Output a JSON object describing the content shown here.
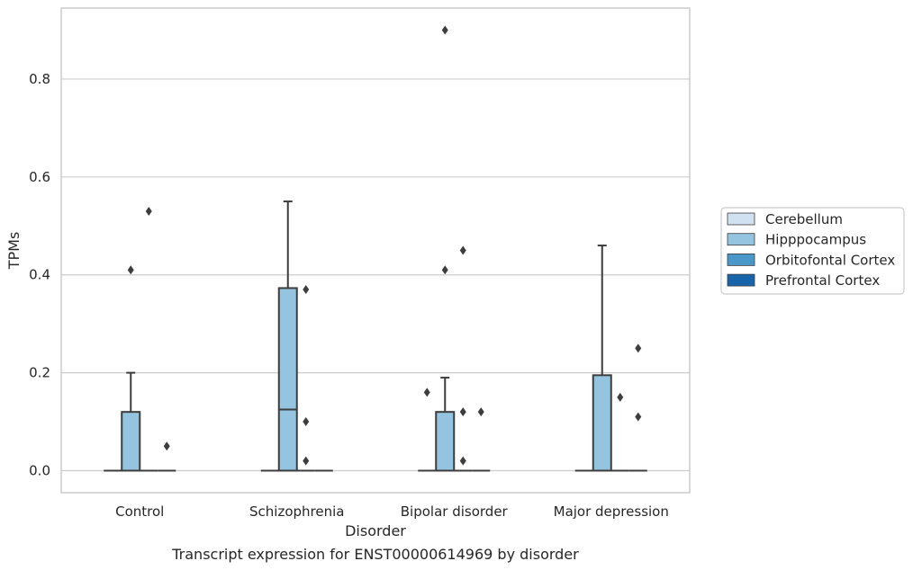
{
  "chart_data": {
    "type": "box",
    "caption": "Transcript expression for ENST00000614969 by disorder",
    "xlabel": "Disorder",
    "ylabel": "TPMs",
    "ylim": [
      -0.045,
      0.945
    ],
    "yticks": [
      0.0,
      0.2,
      0.4,
      0.6,
      0.8
    ],
    "ytick_labels": [
      "0.0",
      "0.2",
      "0.4",
      "0.6",
      "0.8"
    ],
    "grid": "horizontal",
    "legend_position": "right-center",
    "categories": [
      "Control",
      "Schizophrenia",
      "Bipolar disorder",
      "Major depression"
    ],
    "series": [
      {
        "name": "Cerebellum",
        "color": "#d0e1f2",
        "boxes": [
          {
            "q1": 0,
            "median": 0,
            "q3": 0,
            "whisker_low": 0,
            "whisker_high": 0,
            "outliers": []
          },
          {
            "q1": 0,
            "median": 0,
            "q3": 0,
            "whisker_low": 0,
            "whisker_high": 0,
            "outliers": []
          },
          {
            "q1": 0,
            "median": 0,
            "q3": 0,
            "whisker_low": 0,
            "whisker_high": 0,
            "outliers": [
              0.16
            ]
          },
          {
            "q1": 0,
            "median": 0,
            "q3": 0,
            "whisker_low": 0,
            "whisker_high": 0,
            "outliers": []
          }
        ]
      },
      {
        "name": "Hipppocampus",
        "color": "#94c4df",
        "boxes": [
          {
            "q1": 0,
            "median": 0,
            "q3": 0.12,
            "whisker_low": 0,
            "whisker_high": 0.2,
            "outliers": [
              0.41
            ]
          },
          {
            "q1": 0,
            "median": 0.125,
            "q3": 0.373,
            "whisker_low": 0,
            "whisker_high": 0.55,
            "outliers": []
          },
          {
            "q1": 0,
            "median": 0,
            "q3": 0.12,
            "whisker_low": 0,
            "whisker_high": 0.19,
            "outliers": [
              0.41,
              0.9
            ]
          },
          {
            "q1": 0,
            "median": 0,
            "q3": 0.195,
            "whisker_low": 0,
            "whisker_high": 0.46,
            "outliers": []
          }
        ]
      },
      {
        "name": "Orbitofontal Cortex",
        "color": "#4a98c9",
        "boxes": [
          {
            "q1": 0,
            "median": 0,
            "q3": 0,
            "whisker_low": 0,
            "whisker_high": 0,
            "outliers": [
              0.53
            ]
          },
          {
            "q1": 0,
            "median": 0,
            "q3": 0,
            "whisker_low": 0,
            "whisker_high": 0,
            "outliers": [
              0.37,
              0.1,
              0.02
            ]
          },
          {
            "q1": 0,
            "median": 0,
            "q3": 0,
            "whisker_low": 0,
            "whisker_high": 0,
            "outliers": [
              0.45,
              0.12,
              0.02
            ]
          },
          {
            "q1": 0,
            "median": 0,
            "q3": 0,
            "whisker_low": 0,
            "whisker_high": 0,
            "outliers": [
              0.15
            ]
          }
        ]
      },
      {
        "name": "Prefrontal Cortex",
        "color": "#1764ab",
        "boxes": [
          {
            "q1": 0,
            "median": 0,
            "q3": 0,
            "whisker_low": 0,
            "whisker_high": 0,
            "outliers": [
              0.05
            ]
          },
          {
            "q1": 0,
            "median": 0,
            "q3": 0,
            "whisker_low": 0,
            "whisker_high": 0,
            "outliers": []
          },
          {
            "q1": 0,
            "median": 0,
            "q3": 0,
            "whisker_low": 0,
            "whisker_high": 0,
            "outliers": [
              0.12
            ]
          },
          {
            "q1": 0,
            "median": 0,
            "q3": 0,
            "whisker_low": 0,
            "whisker_high": 0,
            "outliers": [
              0.25,
              0.11
            ]
          }
        ]
      }
    ]
  }
}
